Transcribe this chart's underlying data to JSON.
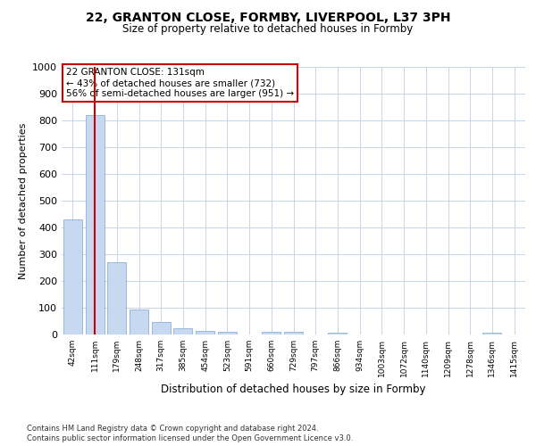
{
  "title": "22, GRANTON CLOSE, FORMBY, LIVERPOOL, L37 3PH",
  "subtitle": "Size of property relative to detached houses in Formby",
  "xlabel": "Distribution of detached houses by size in Formby",
  "ylabel": "Number of detached properties",
  "categories": [
    "42sqm",
    "111sqm",
    "179sqm",
    "248sqm",
    "317sqm",
    "385sqm",
    "454sqm",
    "523sqm",
    "591sqm",
    "660sqm",
    "729sqm",
    "797sqm",
    "866sqm",
    "934sqm",
    "1003sqm",
    "1072sqm",
    "1140sqm",
    "1209sqm",
    "1278sqm",
    "1346sqm",
    "1415sqm"
  ],
  "values": [
    430,
    820,
    270,
    93,
    48,
    22,
    13,
    9,
    0,
    10,
    10,
    0,
    8,
    0,
    0,
    0,
    0,
    0,
    0,
    8,
    0
  ],
  "bar_color": "#c6d9f0",
  "bar_edge_color": "#7aa8d2",
  "vline_x": 1,
  "vline_color": "#cc0000",
  "annotation_text": "22 GRANTON CLOSE: 131sqm\n← 43% of detached houses are smaller (732)\n56% of semi-detached houses are larger (951) →",
  "annotation_box_color": "#ffffff",
  "annotation_box_edge": "#cc0000",
  "ylim": [
    0,
    1000
  ],
  "yticks": [
    0,
    100,
    200,
    300,
    400,
    500,
    600,
    700,
    800,
    900,
    1000
  ],
  "background_color": "#ffffff",
  "grid_color": "#c8d4e8",
  "footer_line1": "Contains HM Land Registry data © Crown copyright and database right 2024.",
  "footer_line2": "Contains public sector information licensed under the Open Government Licence v3.0."
}
